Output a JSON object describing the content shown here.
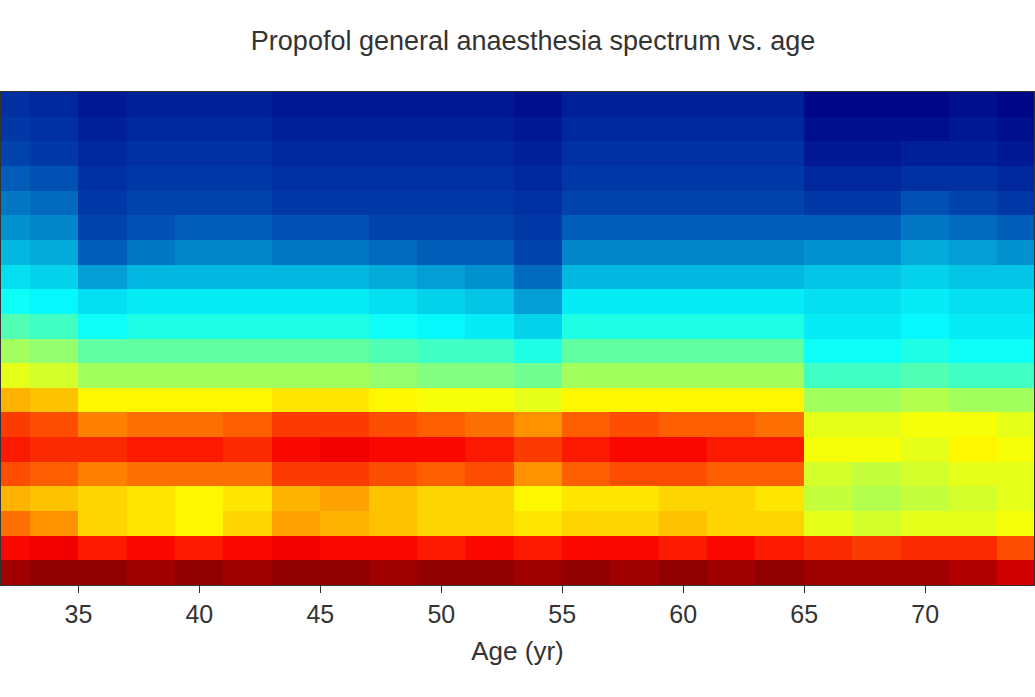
{
  "chart_data": {
    "type": "heatmap",
    "title": "Propofol general anaesthesia spectrum vs. age",
    "xlabel": "Age (yr)",
    "xlim": [
      31.8,
      74.5
    ],
    "xticks": [
      35,
      40,
      45,
      50,
      55,
      60,
      65,
      70
    ],
    "ylim": [
      0,
      40
    ],
    "tick_labels": "x",
    "zlim": [
      -10,
      20
    ],
    "x": [
      32,
      34,
      36,
      38,
      40,
      42,
      44,
      46,
      48,
      50,
      52,
      54,
      56,
      58,
      60,
      62,
      64,
      66,
      68,
      70,
      72,
      74
    ],
    "y": [
      1,
      3,
      5,
      7,
      9,
      11,
      13,
      15,
      17,
      19,
      21,
      23,
      25,
      27,
      29,
      31,
      33,
      35,
      37,
      39
    ],
    "z": [
      [
        19,
        19.5,
        19.5,
        19,
        19.5,
        19,
        19.5,
        19.5,
        19,
        19.5,
        19.5,
        19,
        19.5,
        19,
        19.5,
        19,
        19.5,
        19,
        19,
        19,
        18.5,
        17.5
      ],
      [
        16,
        16.5,
        15.5,
        16,
        15.5,
        16,
        16.5,
        16,
        16,
        15.5,
        16,
        15.5,
        16,
        16,
        15.5,
        16,
        15.5,
        15,
        14.5,
        15,
        15,
        14
      ],
      [
        13,
        12,
        10,
        9.5,
        9,
        10,
        11.5,
        11,
        10.5,
        10,
        10,
        9.5,
        10,
        10,
        10.5,
        10,
        10,
        8,
        7.5,
        8,
        8,
        8.5
      ],
      [
        11,
        10.5,
        10,
        9.5,
        9,
        9.5,
        11,
        11.5,
        10.5,
        10,
        10,
        9,
        9.5,
        9.5,
        10,
        10,
        9.5,
        7,
        6.5,
        7,
        7.5,
        8
      ],
      [
        14,
        13.5,
        12.5,
        13,
        13,
        13,
        14.5,
        14.5,
        14,
        13.5,
        14,
        12,
        13.5,
        14,
        14,
        13.5,
        13.5,
        7.5,
        7,
        7.5,
        8,
        8
      ],
      [
        15.5,
        15,
        15,
        15.5,
        15.5,
        15,
        16,
        16.5,
        16,
        16,
        15.5,
        14.5,
        15.5,
        16,
        16,
        15.5,
        15.5,
        8.5,
        8.5,
        8,
        9,
        8.5
      ],
      [
        14.5,
        14,
        12.5,
        13,
        13,
        13.5,
        14.5,
        14.5,
        14,
        13.5,
        13,
        12,
        13.5,
        14,
        13.5,
        13.5,
        13,
        8,
        8,
        8.5,
        8.5,
        8
      ],
      [
        11,
        10.5,
        9,
        9,
        9,
        9,
        9.5,
        9.5,
        9,
        8.5,
        8.5,
        8,
        9,
        9,
        9,
        9,
        9,
        6,
        6,
        6.5,
        6,
        6
      ],
      [
        8,
        7.5,
        6,
        6,
        6,
        6,
        6,
        6,
        5.5,
        5,
        5,
        4.5,
        6,
        6,
        6,
        6,
        6,
        3,
        3,
        3.5,
        3,
        3
      ],
      [
        6,
        5.5,
        4,
        4,
        4,
        4,
        4,
        4,
        3.5,
        3,
        3,
        2,
        4,
        4,
        4,
        4,
        4,
        1.5,
        1.5,
        2,
        1.5,
        1.5
      ],
      [
        3.5,
        3,
        1.5,
        2,
        2,
        2,
        2,
        2,
        1.5,
        1,
        0.5,
        -0.5,
        2,
        2,
        2,
        2,
        2,
        0.5,
        0.5,
        1,
        0.5,
        0.5
      ],
      [
        1.5,
        1,
        0,
        0.5,
        0.5,
        0.5,
        0.5,
        0.5,
        0,
        -0.5,
        -1,
        -2.5,
        0.5,
        0.5,
        0.5,
        0.5,
        0.5,
        0,
        0,
        0.5,
        0,
        0
      ],
      [
        0,
        -0.5,
        -2.5,
        -1.5,
        -1.5,
        -1.5,
        -1.5,
        -1.5,
        -2,
        -2.5,
        -3,
        -4.5,
        -1.5,
        -1.5,
        -1.5,
        -1.5,
        -1.5,
        -1,
        -1,
        -0.5,
        -1,
        -1
      ],
      [
        -1.5,
        -2,
        -5,
        -4,
        -3.5,
        -3.5,
        -4,
        -4,
        -4.5,
        -5,
        -5,
        -6,
        -3.5,
        -3.5,
        -3.5,
        -3.5,
        -3.5,
        -3,
        -3,
        -2,
        -2.5,
        -3
      ],
      [
        -3,
        -3.5,
        -6,
        -5.5,
        -5,
        -5,
        -5.5,
        -5.5,
        -6,
        -6,
        -6,
        -6.5,
        -5,
        -5,
        -5,
        -5,
        -5,
        -5,
        -5,
        -4,
        -4.5,
        -5
      ],
      [
        -4,
        -4.5,
        -6.5,
        -6,
        -6,
        -6,
        -6.5,
        -6.5,
        -6.5,
        -6.5,
        -6.5,
        -7,
        -6,
        -6,
        -6,
        -6,
        -6,
        -6.5,
        -6.5,
        -5.5,
        -6,
        -6.5
      ],
      [
        -5,
        -5.5,
        -7,
        -6.5,
        -6.5,
        -6.5,
        -7,
        -7,
        -7,
        -7,
        -7,
        -7.5,
        -6.5,
        -6.5,
        -6.5,
        -6.5,
        -6.5,
        -7.5,
        -7.5,
        -7,
        -7,
        -7.5
      ],
      [
        -6,
        -6.5,
        -7.5,
        -7,
        -7,
        -7,
        -7.5,
        -7.5,
        -7.5,
        -7.5,
        -7.5,
        -8,
        -7,
        -7,
        -7,
        -7,
        -7,
        -8.5,
        -8.5,
        -8,
        -8,
        -8.5
      ],
      [
        -6.5,
        -7,
        -8,
        -7.5,
        -7.5,
        -7.5,
        -8,
        -8,
        -8,
        -8,
        -8,
        -8.5,
        -7.5,
        -7.5,
        -7.5,
        -7.5,
        -7.5,
        -9,
        -9,
        -9,
        -8.5,
        -9
      ],
      [
        -7,
        -7.5,
        -8.5,
        -8,
        -8,
        -8,
        -8.5,
        -8.5,
        -8.5,
        -8.5,
        -8.5,
        -9,
        -8,
        -8,
        -8,
        -8,
        -8,
        -9.5,
        -9.5,
        -9.5,
        -9,
        -9.5
      ]
    ]
  }
}
